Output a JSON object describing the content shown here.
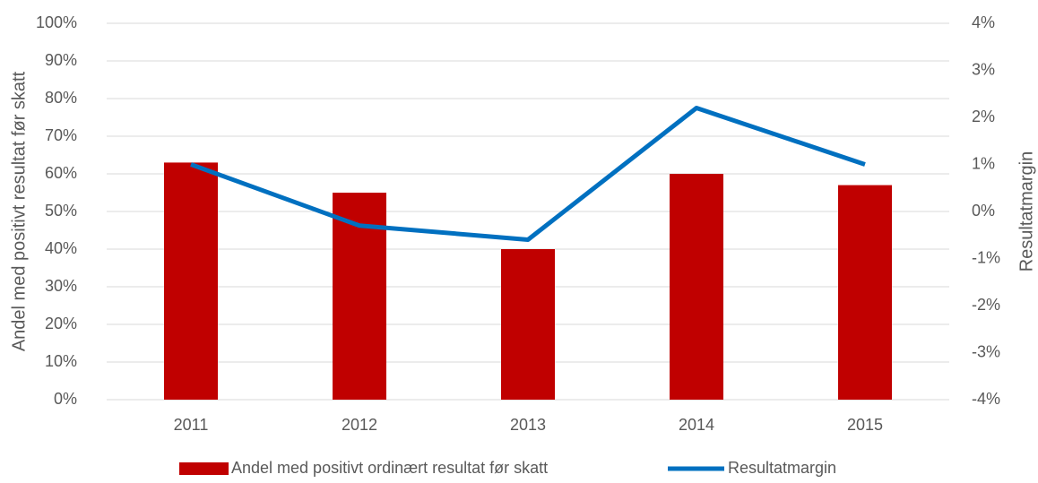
{
  "chart_data": {
    "type": "bar",
    "categories": [
      "2011",
      "2012",
      "2013",
      "2014",
      "2015"
    ],
    "series": [
      {
        "name": "Andel med positivt ordinært resultat før skatt",
        "type": "bar",
        "color": "#c00000",
        "values": [
          63,
          55,
          40,
          60,
          57
        ]
      },
      {
        "name": "Resultatmargin",
        "type": "line",
        "axis": "y2",
        "color": "#0070c0",
        "values": [
          1.0,
          -0.3,
          -0.6,
          2.2,
          1.0
        ]
      }
    ],
    "ylabel": "Andel med positivt resultat før skatt",
    "y2label": "Resultatmargin",
    "ylim": [
      0,
      100
    ],
    "yticks": [
      {
        "value": 0,
        "label": "0%"
      },
      {
        "value": 10,
        "label": "10%"
      },
      {
        "value": 20,
        "label": "20%"
      },
      {
        "value": 30,
        "label": "30%"
      },
      {
        "value": 40,
        "label": "40%"
      },
      {
        "value": 50,
        "label": "50%"
      },
      {
        "value": 60,
        "label": "60%"
      },
      {
        "value": 70,
        "label": "70%"
      },
      {
        "value": 80,
        "label": "80%"
      },
      {
        "value": 90,
        "label": "90%"
      },
      {
        "value": 100,
        "label": "100%"
      }
    ],
    "y2lim": [
      -4,
      4
    ],
    "y2ticks": [
      {
        "value": -4,
        "label": "-4%"
      },
      {
        "value": -3,
        "label": "-3%"
      },
      {
        "value": -2,
        "label": "-2%"
      },
      {
        "value": -1,
        "label": "-1%"
      },
      {
        "value": 0,
        "label": "0%"
      },
      {
        "value": 1,
        "label": "1%"
      },
      {
        "value": 2,
        "label": "2%"
      },
      {
        "value": 3,
        "label": "3%"
      },
      {
        "value": 4,
        "label": "4%"
      }
    ],
    "grid": true,
    "legend": "bottom"
  }
}
